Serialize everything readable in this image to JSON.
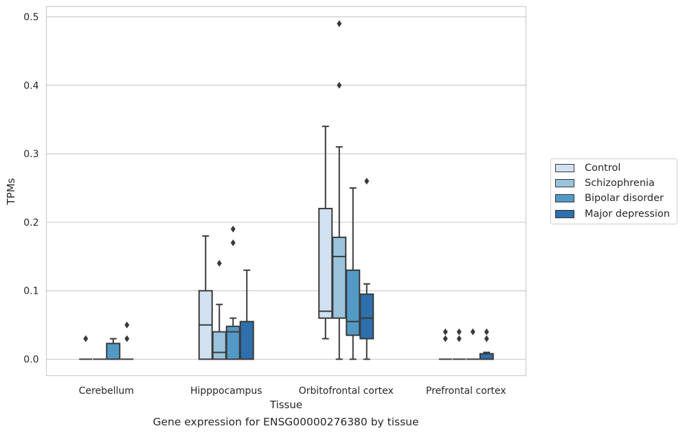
{
  "chart_data": {
    "type": "box",
    "title": "",
    "xlabel": "Tissue",
    "ylabel": "TPMs",
    "caption": "Gene expression for ENSG00000276380 by tissue",
    "ylim": [
      -0.024,
      0.515
    ],
    "yticks": [
      "0.0",
      "0.1",
      "0.2",
      "0.3",
      "0.4",
      "0.5"
    ],
    "grid": true,
    "legend_position": "right, outside",
    "categories": [
      "Cerebellum",
      "Hipppocampus",
      "Orbitofrontal cortex",
      "Prefrontal cortex"
    ],
    "series": [
      {
        "name": "Control",
        "color": "#d1e1f1",
        "boxes": [
          {
            "min": 0,
            "q1": 0,
            "median": 0,
            "q3": 0,
            "max": 0,
            "outliers": [
              0.03
            ]
          },
          {
            "min": 0,
            "q1": 0,
            "median": 0.05,
            "q3": 0.1,
            "max": 0.18,
            "outliers": []
          },
          {
            "min": 0.03,
            "q1": 0.06,
            "median": 0.07,
            "q3": 0.22,
            "max": 0.34,
            "outliers": []
          },
          {
            "min": 0,
            "q1": 0,
            "median": 0,
            "q3": 0,
            "max": 0,
            "outliers": [
              0.04,
              0.03
            ]
          }
        ]
      },
      {
        "name": "Schizophrenia",
        "color": "#9ac3dc",
        "boxes": [
          {
            "min": 0,
            "q1": 0,
            "median": 0,
            "q3": 0,
            "max": 0,
            "outliers": []
          },
          {
            "min": 0,
            "q1": 0,
            "median": 0.01,
            "q3": 0.04,
            "max": 0.08,
            "outliers": [
              0.14
            ]
          },
          {
            "min": 0,
            "q1": 0.06,
            "median": 0.15,
            "q3": 0.178,
            "max": 0.31,
            "outliers": [
              0.4,
              0.49
            ]
          },
          {
            "min": 0,
            "q1": 0,
            "median": 0,
            "q3": 0,
            "max": 0,
            "outliers": [
              0.04,
              0.03
            ]
          }
        ]
      },
      {
        "name": "Bipolar disorder",
        "color": "#5399c6",
        "boxes": [
          {
            "min": 0,
            "q1": 0,
            "median": 0,
            "q3": 0.023,
            "max": 0.03,
            "outliers": []
          },
          {
            "min": 0,
            "q1": 0,
            "median": 0.04,
            "q3": 0.048,
            "max": 0.06,
            "outliers": [
              0.17,
              0.19
            ]
          },
          {
            "min": 0,
            "q1": 0.035,
            "median": 0.055,
            "q3": 0.13,
            "max": 0.25,
            "outliers": []
          },
          {
            "min": 0,
            "q1": 0,
            "median": 0,
            "q3": 0,
            "max": 0,
            "outliers": [
              0.04
            ]
          }
        ]
      },
      {
        "name": "Major depression",
        "color": "#2e6fac",
        "boxes": [
          {
            "min": 0,
            "q1": 0,
            "median": 0,
            "q3": 0,
            "max": 0,
            "outliers": [
              0.05,
              0.03
            ]
          },
          {
            "min": 0,
            "q1": 0,
            "median": 0,
            "q3": 0.055,
            "max": 0.13,
            "outliers": []
          },
          {
            "min": 0,
            "q1": 0.03,
            "median": 0.06,
            "q3": 0.095,
            "max": 0.11,
            "outliers": [
              0.26
            ]
          },
          {
            "min": 0,
            "q1": 0,
            "median": 0,
            "q3": 0.008,
            "max": 0.01,
            "outliers": [
              0.04,
              0.03
            ]
          }
        ]
      }
    ]
  }
}
